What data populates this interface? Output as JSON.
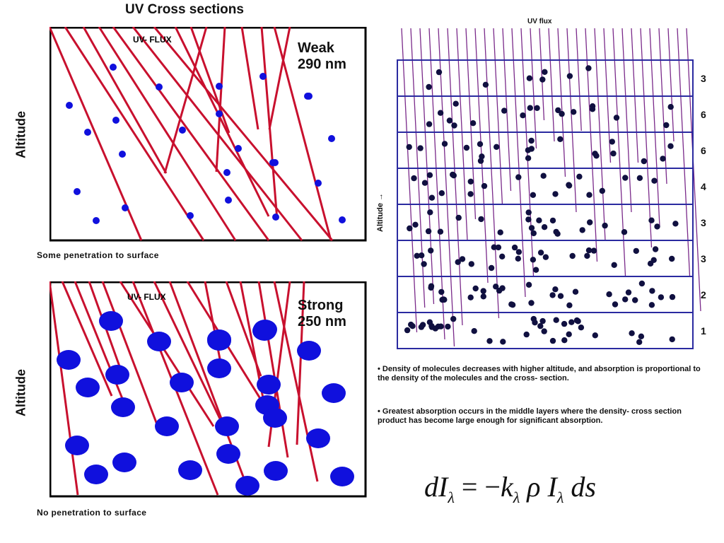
{
  "title": "UV Cross sections",
  "panels": {
    "weak": {
      "flux_label": "UV- FLUX",
      "strength": "Weak",
      "wavelength": "290 nm",
      "axis_label": "Altitude",
      "caption": "Some penetration to surface"
    },
    "strong": {
      "flux_label": "UV- FLUX",
      "strength": "Strong",
      "wavelength": "250 nm",
      "axis_label": "Altitude",
      "caption": "No penetration to surface"
    }
  },
  "layers_diagram": {
    "flux_label": "UV flux",
    "axis_label": "Altitude →",
    "layer_values": [
      "3",
      "6",
      "6",
      "4",
      "3",
      "3",
      "2",
      "1"
    ]
  },
  "notes": [
    "• Density of molecules decreases with higher altitude, and absorption is proportional to the density of the molecules and the cross- section.",
    "• Greatest absorption occurs in the middle layers where the density- cross section product has become large enough for significant absorption."
  ],
  "equation": {
    "d": "d",
    "I": "I",
    "lambda": "λ",
    "eq": " = −",
    "k": "k",
    "rho": " ρ ",
    "ds": " ds"
  },
  "colors": {
    "ray": "#c8102e",
    "molecule_blue": "#1010dd",
    "molecule_dark": "#101040",
    "layer_border": "#2a2aa0",
    "flux_line": "#7a2a8a"
  }
}
